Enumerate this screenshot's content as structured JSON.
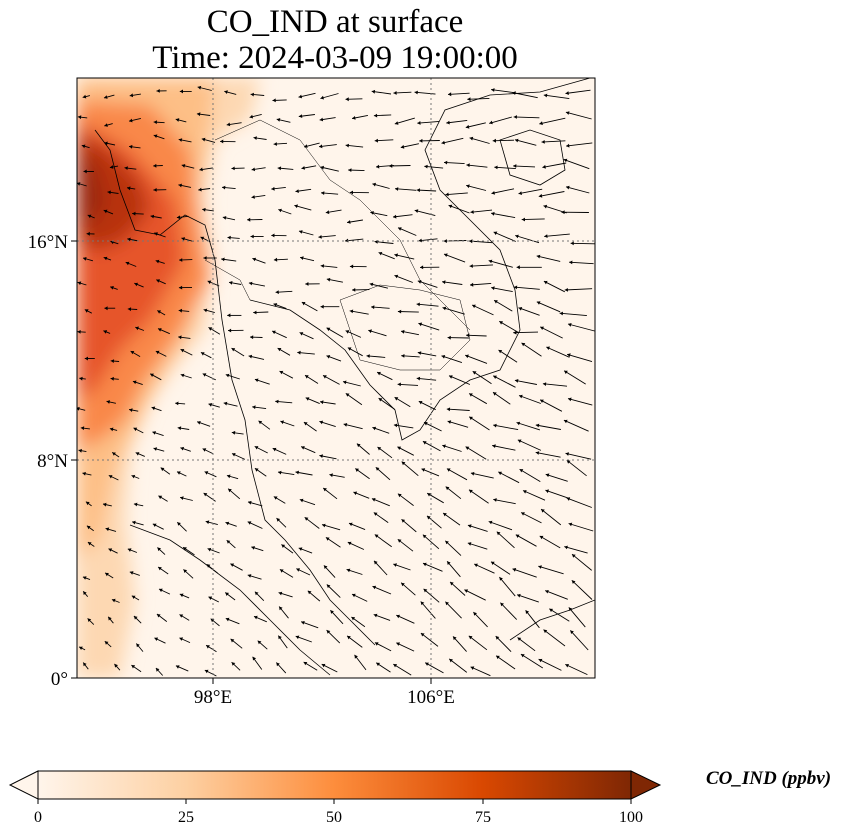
{
  "title": {
    "line1": "CO_IND at surface",
    "line2": "Time: 2024-03-09 19:00:00"
  },
  "map": {
    "extent": {
      "lon": [
        93,
        112
      ],
      "lat": [
        0,
        22
      ]
    },
    "lat_ticks": [
      {
        "value": 16,
        "label": "16°N"
      },
      {
        "value": 8,
        "label": "8°N"
      },
      {
        "value": 0,
        "label": "0°"
      }
    ],
    "lon_ticks": [
      {
        "value": 98,
        "label": "98°E"
      },
      {
        "value": 106,
        "label": "106°E"
      }
    ],
    "gridlines": true,
    "field_max_region": "west (Myanmar coast / Andaman Sea)",
    "wind_vectors": true
  },
  "colorbar": {
    "label": "CO_IND (ppbv)",
    "min": 0,
    "max": 100,
    "extend": "both",
    "ticks": [
      "0",
      "25",
      "50",
      "75",
      "100"
    ],
    "colors": [
      "#fff5eb",
      "#fdd0a2",
      "#fd8d3c",
      "#d94801",
      "#7f2704"
    ]
  }
}
